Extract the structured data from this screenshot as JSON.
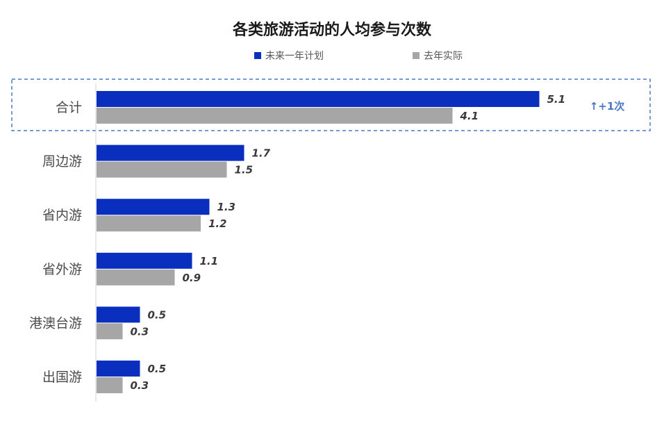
{
  "chart_data": {
    "type": "bar",
    "orientation": "horizontal",
    "title": "各类旅游活动的人均参与次数",
    "categories": [
      "合计",
      "周边游",
      "省内游",
      "省外游",
      "港澳台游",
      "出国游"
    ],
    "series": [
      {
        "name": "未来一年计划",
        "color": "#0a2fbf",
        "values": [
          5.1,
          1.7,
          1.3,
          1.1,
          0.5,
          0.5
        ]
      },
      {
        "name": "去年实际",
        "color": "#a6a6a6",
        "values": [
          4.1,
          1.5,
          1.2,
          0.9,
          0.3,
          0.3
        ]
      }
    ],
    "xlim": [
      0,
      6
    ],
    "grid": false,
    "legend_position": "top-center",
    "annotation": {
      "category": "合计",
      "text": "↑+1次",
      "color": "#4a78c8"
    }
  }
}
